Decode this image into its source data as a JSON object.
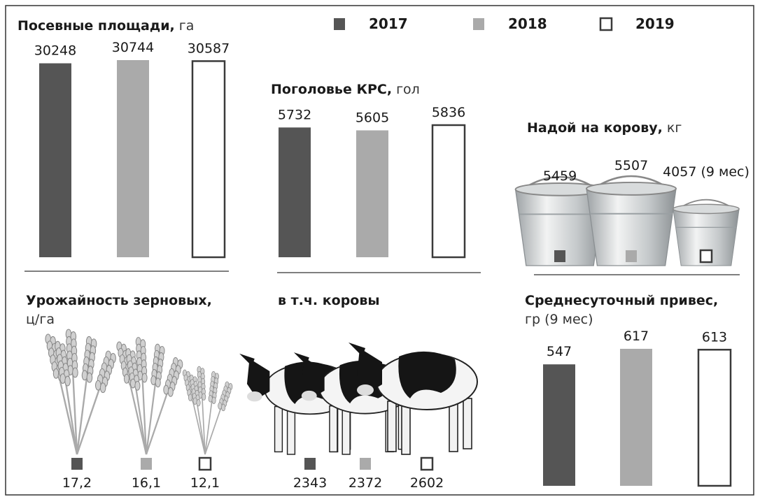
{
  "legend": [
    {
      "name": "2017",
      "color": "#555555"
    },
    {
      "name": "2018",
      "color": "#aaaaaa"
    },
    {
      "name": "2019",
      "color": "#ffffff",
      "edge": "#3a3a3a"
    }
  ],
  "chart_data": [
    {
      "type": "bar",
      "title": "Посевные площади,",
      "unit": "га",
      "values": [
        30248,
        30744,
        30587
      ]
    },
    {
      "type": "bar",
      "title": "Поголовье КРС,",
      "unit": "гол",
      "values": [
        5732,
        5605,
        5836
      ]
    },
    {
      "type": "pictogram",
      "icon": "bucket",
      "title": "Надой на корову,",
      "unit": "кг",
      "values": [
        5459,
        5507,
        4057
      ],
      "value_labels": [
        "5459",
        "5507",
        "4057 (9 мес)"
      ]
    },
    {
      "type": "pictogram",
      "icon": "wheat",
      "title": "Урожайность зерновых,",
      "unit": "ц/га",
      "values": [
        17.2,
        16.1,
        12.1
      ],
      "value_labels": [
        "17,2",
        "16,1",
        "12,1"
      ]
    },
    {
      "type": "pictogram",
      "icon": "cow",
      "title": "в т.ч. коровы",
      "values": [
        2343,
        2372,
        2602
      ]
    },
    {
      "type": "bar",
      "title": "Среднесуточный привес,",
      "unit": "гр (9 мес)",
      "values": [
        547,
        617,
        613
      ]
    }
  ]
}
